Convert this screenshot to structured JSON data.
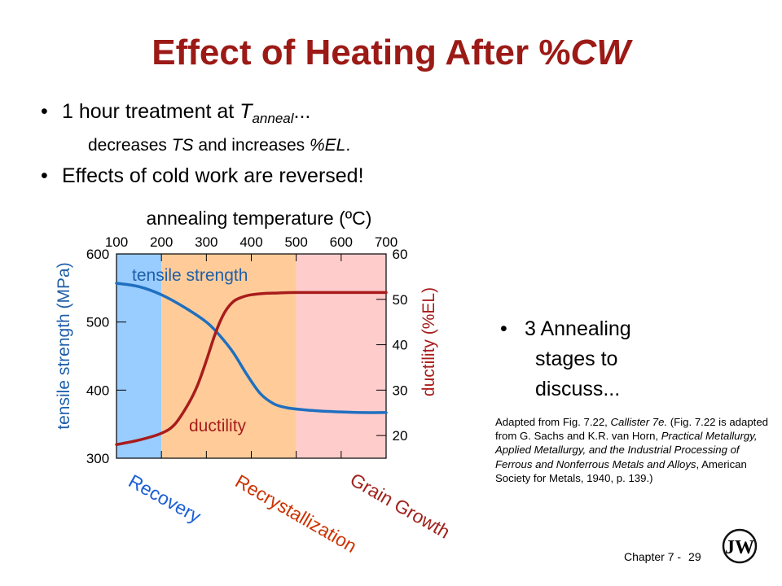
{
  "slide": {
    "title_prefix": "Effect of Heating After %",
    "title_italic": "CW",
    "bullet1_pre": "1 hour treatment at ",
    "bullet1_T": "T",
    "bullet1_sub": "anneal",
    "bullet1_post": "...",
    "bullet1_line2_pre": "decreases ",
    "bullet1_line2_ts": "TS",
    "bullet1_line2_mid": " and increases ",
    "bullet1_line2_el": "%EL",
    "bullet1_line2_end": ".",
    "bullet2": "Effects of cold work are reversed!",
    "bullet_symbol": "•",
    "stages_line1": "3 Annealing",
    "stages_line2": "stages to",
    "stages_line3": "discuss...",
    "caption_1": "Adapted from Fig. 7.22, ",
    "caption_book": "Callister 7e.",
    "caption_2": "  (Fig. 7.22 is adapted from G. Sachs and K.R. van Horn, ",
    "caption_title": "Practical Metallurgy, Applied Metallurgy, and the Industrial Processing of Ferrous and Nonferrous Metals and Alloys",
    "caption_3": ", American Society for Metals, 1940, p. 139.)",
    "footer_chapter": "Chapter 7 -",
    "footer_page": "29",
    "logo_letters": "JW"
  },
  "chart_data": {
    "type": "line",
    "title": "",
    "xlabel": "annealing temperature (ºC)",
    "x_ticks": [
      100,
      200,
      300,
      400,
      500,
      600,
      700
    ],
    "xlim": [
      100,
      700
    ],
    "y_left_label": "tensile strength (MPa)",
    "y_left_ticks": [
      300,
      400,
      500,
      600
    ],
    "y_left_lim": [
      300,
      600
    ],
    "y_right_label": "ductility (%EL)",
    "y_right_ticks": [
      20,
      30,
      40,
      50,
      60
    ],
    "y_right_lim": [
      15,
      60
    ],
    "regions": [
      {
        "name": "Recovery",
        "x0": 100,
        "x1": 200,
        "color": "#99ccff",
        "label_color": "#1a5fd6"
      },
      {
        "name": "Recrystallization",
        "x0": 200,
        "x1": 500,
        "color": "#ffcc99",
        "label_color": "#cc3300"
      },
      {
        "name": "Grain Growth",
        "x0": 500,
        "x1": 700,
        "color": "#ffcccc",
        "label_color": "#a0221c"
      }
    ],
    "series": [
      {
        "name": "tensile strength",
        "axis": "left",
        "color": "#1f6fbf",
        "x": [
          100,
          150,
          200,
          250,
          300,
          330,
          360,
          390,
          420,
          450,
          480,
          520,
          560,
          600,
          650,
          700
        ],
        "y": [
          557,
          552,
          540,
          522,
          500,
          480,
          455,
          423,
          395,
          380,
          374,
          371,
          369,
          368,
          367,
          367
        ]
      },
      {
        "name": "ductility",
        "axis": "right",
        "color": "#a81c1c",
        "x": [
          100,
          150,
          200,
          230,
          260,
          280,
          300,
          320,
          340,
          360,
          380,
          400,
          430,
          460,
          500,
          600,
          700
        ],
        "y": [
          18,
          19,
          20.5,
          22.5,
          27,
          31,
          36.5,
          42.5,
          47,
          49.5,
          50.5,
          51,
          51.3,
          51.4,
          51.5,
          51.5,
          51.5
        ]
      }
    ]
  }
}
